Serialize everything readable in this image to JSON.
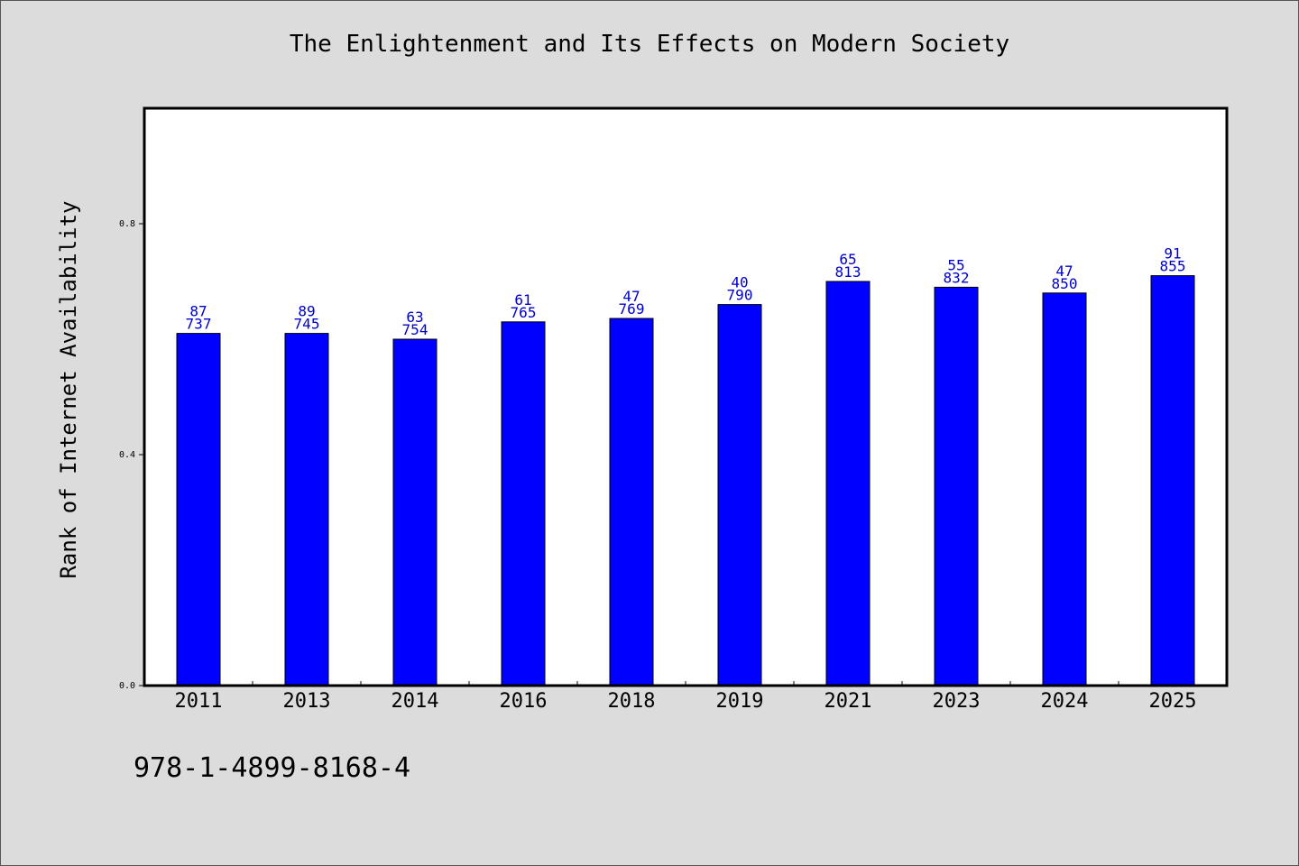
{
  "chart_data": {
    "type": "bar",
    "title": "The Enlightenment and Its Effects on Modern Society",
    "xlabel": "",
    "ylabel": "Rank of Internet Availability",
    "categories": [
      "2011",
      "2013",
      "2014",
      "2016",
      "2018",
      "2019",
      "2021",
      "2023",
      "2024",
      "2025"
    ],
    "values": [
      0.61,
      0.61,
      0.6,
      0.63,
      0.636,
      0.66,
      0.7,
      0.69,
      0.68,
      0.71
    ],
    "label_top": [
      "87",
      "89",
      "63",
      "61",
      "47",
      "40",
      "65",
      "55",
      "47",
      "91"
    ],
    "label_bottom": [
      "737",
      "745",
      "754",
      "765",
      "769",
      "790",
      "813",
      "832",
      "850",
      "855"
    ],
    "ylim": [
      0.0,
      1.0
    ],
    "yticks": [
      0.0,
      0.4,
      0.8
    ],
    "ytick_labels": [
      "0.0",
      "0.4",
      "0.8"
    ],
    "grid": false,
    "colors": {
      "bar": "#0000ff",
      "label": "#0000cc",
      "background": "#dcdcdc",
      "plot_bg": "#ffffff"
    }
  },
  "footer": {
    "code": "978-1-4899-8168-4"
  }
}
